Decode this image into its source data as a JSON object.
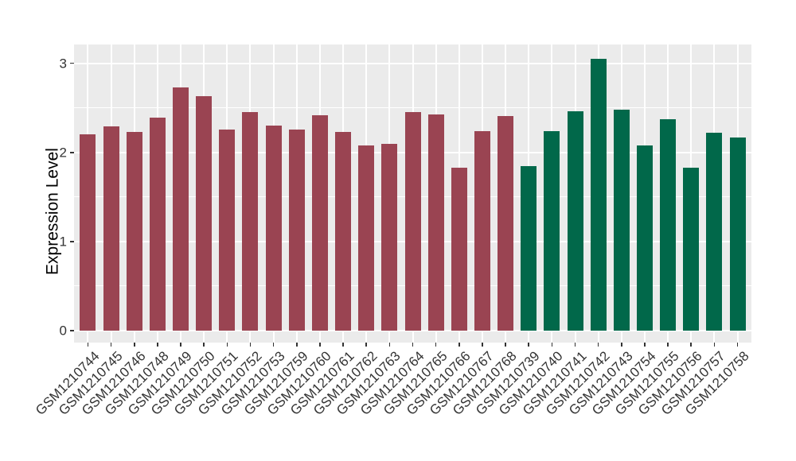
{
  "chart_data": {
    "type": "bar",
    "title": "",
    "xlabel": "",
    "ylabel": "Expression Level",
    "ylim": [
      0,
      3.2
    ],
    "yticks": [
      0,
      1,
      2,
      3
    ],
    "yticks_minor": [
      0.5,
      1.5,
      2.5
    ],
    "grid": "on",
    "legend_position": "none",
    "panel_bg": "#EBEBEB",
    "grid_color": "#FFFFFF",
    "tick_color": "#333333",
    "text_color": "#333333",
    "bar_width_fraction": 0.69,
    "series": [
      {
        "name": "group-maroon",
        "color": "#9A4452",
        "categories": [
          "GSM1210744",
          "GSM1210745",
          "GSM1210746",
          "GSM1210748",
          "GSM1210749",
          "GSM1210750",
          "GSM1210751",
          "GSM1210752",
          "GSM1210753",
          "GSM1210759",
          "GSM1210760",
          "GSM1210761",
          "GSM1210762",
          "GSM1210763",
          "GSM1210764",
          "GSM1210765",
          "GSM1210766",
          "GSM1210767",
          "GSM1210768"
        ],
        "values": [
          2.2,
          2.29,
          2.23,
          2.39,
          2.73,
          2.63,
          2.26,
          2.45,
          2.3,
          2.26,
          2.42,
          2.23,
          2.08,
          2.1,
          2.45,
          2.43,
          1.83,
          2.24,
          2.41
        ]
      },
      {
        "name": "group-green",
        "color": "#01684A",
        "categories": [
          "GSM1210739",
          "GSM1210740",
          "GSM1210741",
          "GSM1210742",
          "GSM1210743",
          "GSM1210754",
          "GSM1210755",
          "GSM1210756",
          "GSM1210757",
          "GSM1210758"
        ],
        "values": [
          1.85,
          2.24,
          2.46,
          3.05,
          2.48,
          2.08,
          2.37,
          1.83,
          2.22,
          2.17
        ]
      }
    ]
  }
}
